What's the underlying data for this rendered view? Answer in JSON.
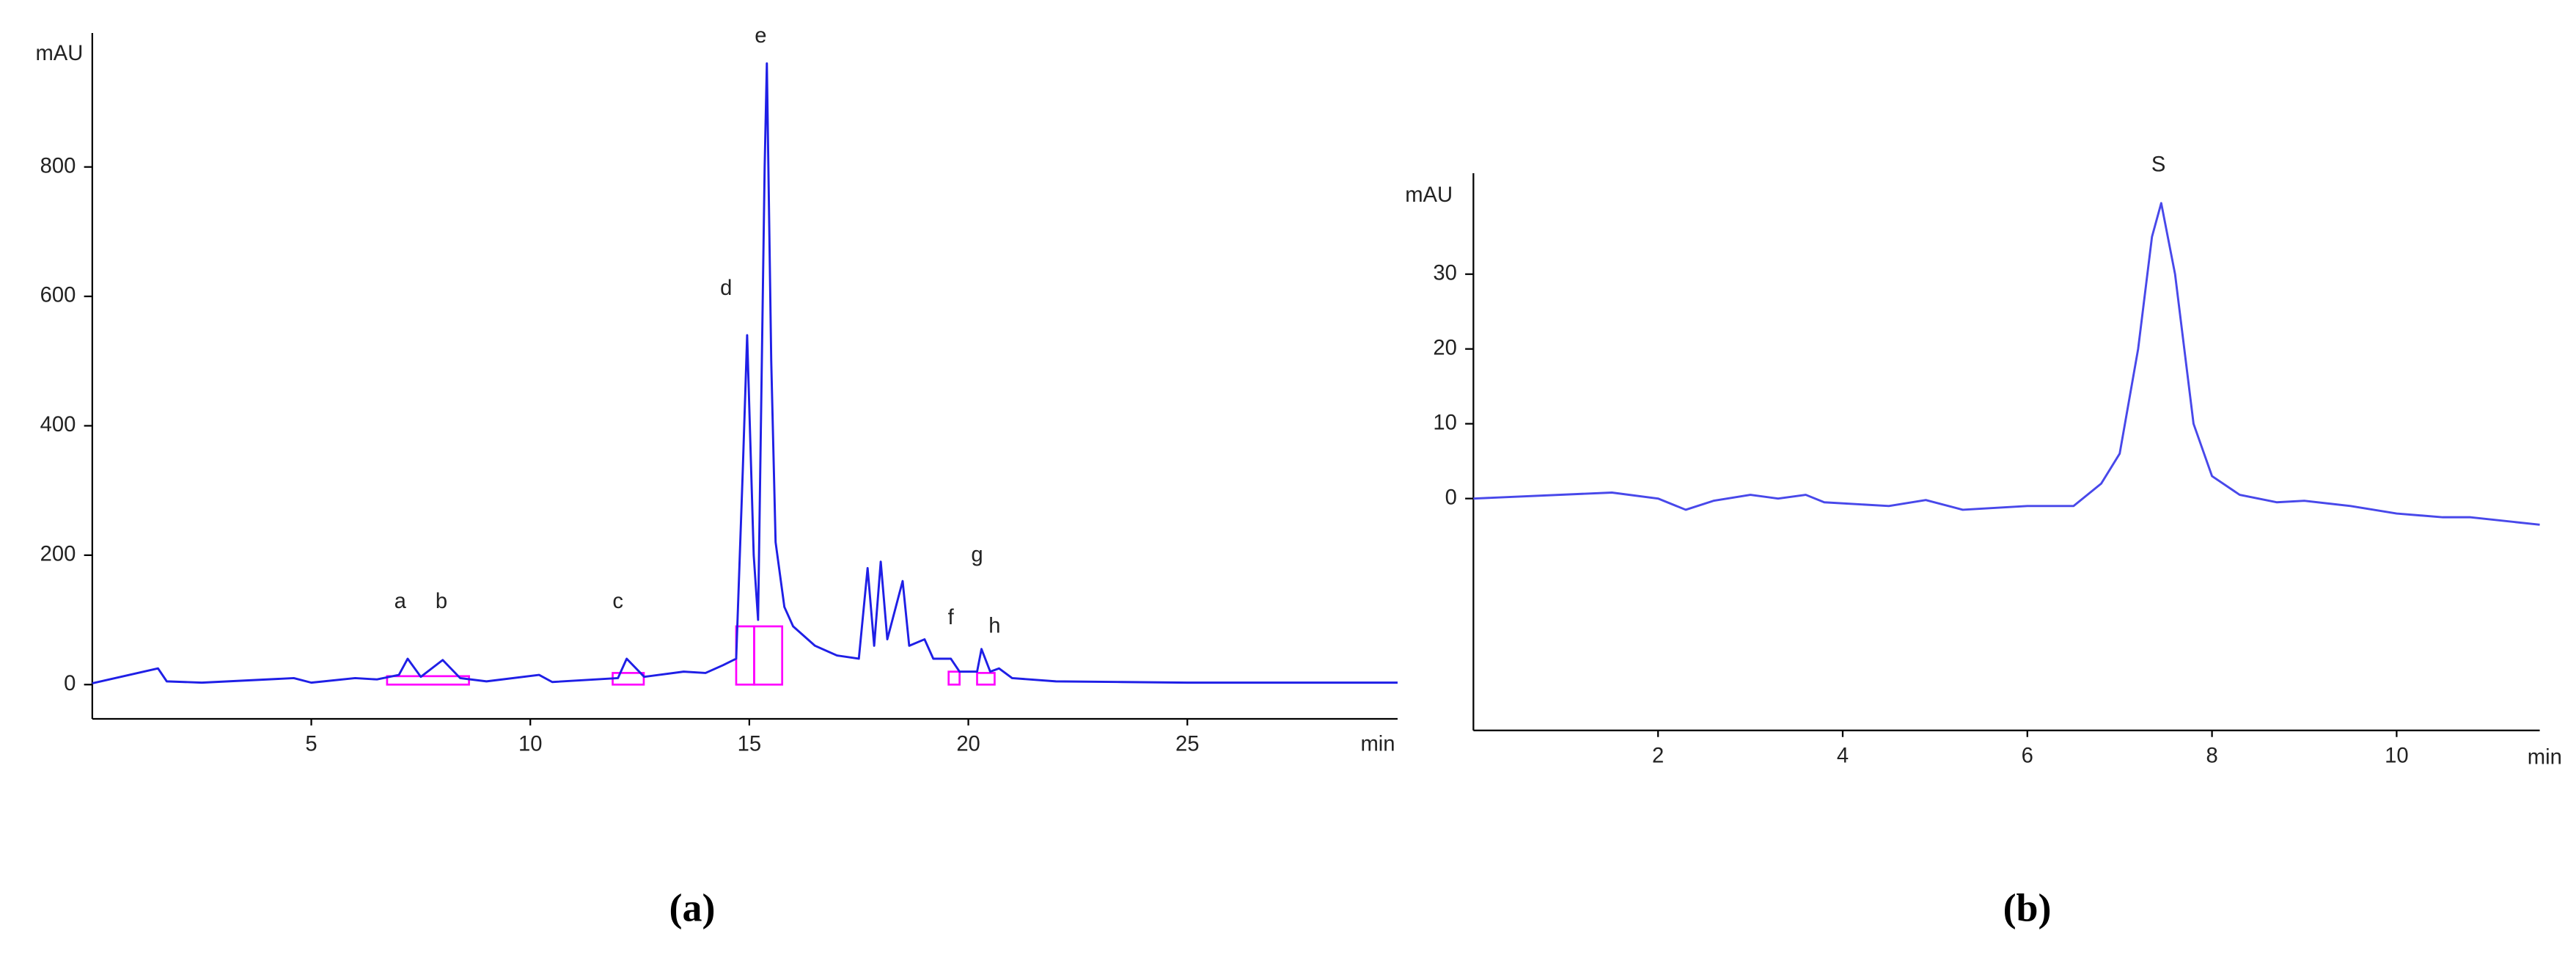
{
  "chart_data": [
    {
      "type": "line",
      "caption": "(a)",
      "x_label": "min",
      "y_label": "mAU",
      "color": "#1f1fe6",
      "xlim": [
        0,
        29.8
      ],
      "ylim": [
        -53,
        1007
      ],
      "xticks": [
        5,
        10,
        15,
        20,
        25
      ],
      "yticks": [
        0,
        200,
        400,
        600,
        800
      ],
      "x": [
        0,
        1.5,
        1.7,
        2.5,
        4.6,
        5.0,
        6.0,
        6.5,
        7.0,
        7.2,
        7.5,
        8.0,
        8.4,
        9.0,
        10.2,
        10.5,
        12.0,
        12.2,
        12.6,
        13.5,
        14.0,
        14.4,
        14.7,
        14.85,
        14.95,
        15.1,
        15.2,
        15.35,
        15.4,
        15.5,
        15.6,
        15.8,
        16.0,
        16.5,
        17.0,
        17.5,
        17.7,
        17.85,
        18.0,
        18.15,
        18.5,
        18.65,
        19.0,
        19.2,
        19.6,
        19.8,
        20.2,
        20.3,
        20.5,
        20.7,
        21.0,
        22.0,
        23.5,
        25.0,
        29.8
      ],
      "values": [
        2,
        25,
        5,
        3,
        10,
        3,
        10,
        8,
        15,
        40,
        12,
        38,
        10,
        5,
        15,
        4,
        10,
        40,
        12,
        20,
        18,
        30,
        40,
        330,
        540,
        200,
        100,
        800,
        960,
        500,
        220,
        120,
        90,
        60,
        45,
        40,
        180,
        60,
        190,
        70,
        160,
        60,
        70,
        40,
        40,
        20,
        20,
        55,
        20,
        25,
        10,
        5,
        4,
        3,
        3
      ],
      "integration_windows": [
        {
          "start": 6.73,
          "end": 8.6,
          "height": 13
        },
        {
          "start": 11.88,
          "end": 12.59,
          "height": 18
        },
        {
          "start": 14.7,
          "end": 15.11,
          "height": 90
        },
        {
          "start": 15.11,
          "end": 15.75,
          "height": 90
        },
        {
          "start": 19.55,
          "end": 19.8,
          "height": 20
        },
        {
          "start": 20.2,
          "end": 20.6,
          "height": 18
        }
      ],
      "window_color": "#ff00ff",
      "annotations": [
        {
          "text": "a",
          "x": 7.03,
          "y": 127
        },
        {
          "text": "b",
          "x": 7.97,
          "y": 127
        },
        {
          "text": "c",
          "x": 12.0,
          "y": 127
        },
        {
          "text": "d",
          "x": 14.47,
          "y": 611
        },
        {
          "text": "e",
          "x": 15.26,
          "y": 1001
        },
        {
          "text": "f",
          "x": 19.6,
          "y": 102
        },
        {
          "text": "g",
          "x": 20.2,
          "y": 199
        },
        {
          "text": "h",
          "x": 20.6,
          "y": 89
        }
      ]
    },
    {
      "type": "line",
      "caption": "(b)",
      "x_label": "min",
      "y_label": "mAU",
      "color": "#4848ea",
      "xlim": [
        0,
        11.55
      ],
      "ylim": [
        -31,
        43.5
      ],
      "xticks": [
        2,
        4,
        6,
        8,
        10
      ],
      "yticks": [
        0,
        10,
        20,
        30
      ],
      "x": [
        0,
        1.5,
        2.0,
        2.3,
        2.6,
        3.0,
        3.3,
        3.6,
        3.8,
        4.5,
        4.9,
        5.3,
        6.0,
        6.5,
        6.8,
        7.0,
        7.2,
        7.35,
        7.45,
        7.6,
        7.8,
        8.0,
        8.3,
        8.7,
        9.0,
        9.5,
        10.0,
        10.5,
        10.8,
        11.55
      ],
      "values": [
        0,
        0.8,
        0,
        -1.5,
        -0.3,
        0.5,
        0,
        0.5,
        -0.5,
        -1,
        -0.2,
        -1.5,
        -1,
        -1,
        2,
        6,
        20,
        35,
        39.5,
        30,
        10,
        3,
        0.5,
        -0.5,
        -0.3,
        -1,
        -2,
        -2.5,
        -2.5,
        -3.5
      ],
      "annotations": [
        {
          "text": "S",
          "x": 7.42,
          "y": 44.5
        }
      ]
    }
  ]
}
